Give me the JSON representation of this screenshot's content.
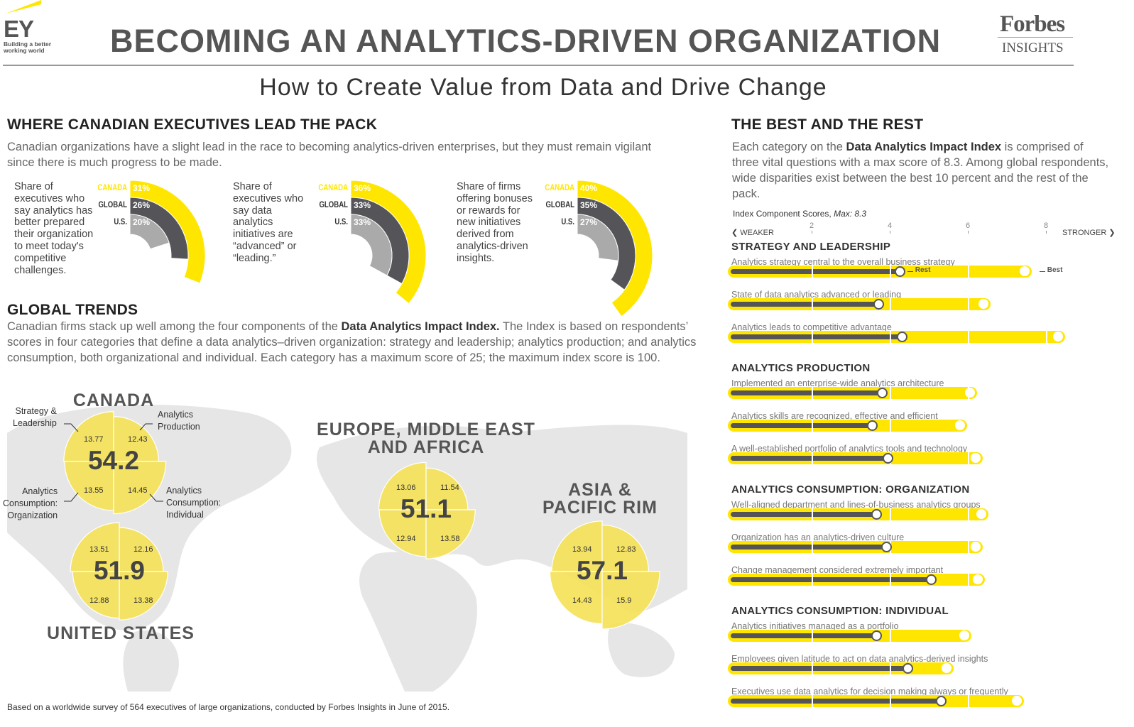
{
  "header": {
    "title": "BECOMING AN ANALYTICS-DRIVEN ORGANIZATION",
    "subtitle": "How to Create Value from Data and Drive Change",
    "ey_logo": "EY",
    "ey_tagline1": "Building a better",
    "ey_tagline2": "working world",
    "forbes_logo": "Forbes",
    "forbes_sub": "INSIGHTS"
  },
  "colors": {
    "yellow": "#FFE600",
    "dark": "#555559",
    "light": "#AAAAAA",
    "map": "#E6E6E6"
  },
  "lead": {
    "title": "WHERE CANADIAN EXECUTIVES LEAD THE PACK",
    "text": "Canadian organizations have a slight lead in the race to becoming analytics-driven enterprises, but they must remain vigilant since there is much progress to be made."
  },
  "chart_data": [
    {
      "type": "radial-bar",
      "description": "Share of executives who say analytics has better prepared their organization to meet today's competitive challenges.",
      "categories": [
        "CANADA",
        "GLOBAL",
        "U.S."
      ],
      "values": [
        31,
        26,
        20
      ],
      "labels": [
        "31%",
        "26%",
        "20%"
      ]
    },
    {
      "type": "radial-bar",
      "description": "Share of executives who say data analytics initiatives are “advanced” or “leading.”",
      "categories": [
        "CANADA",
        "GLOBAL",
        "U.S."
      ],
      "values": [
        36,
        33,
        33
      ],
      "labels": [
        "36%",
        "33%",
        "33%"
      ]
    },
    {
      "type": "radial-bar",
      "description": "Share of firms offering bonuses or rewards for new initiatives derived from analytics-driven insights.",
      "categories": [
        "CANADA",
        "GLOBAL",
        "U.S."
      ],
      "values": [
        40,
        35,
        27
      ],
      "labels": [
        "40%",
        "35%",
        "27%"
      ]
    },
    {
      "type": "polar-area",
      "title": "GLOBAL TRENDS",
      "regions": [
        {
          "name": "CANADA",
          "total": "54.2",
          "values": [
            13.77,
            12.43,
            13.55,
            14.45
          ]
        },
        {
          "name": "UNITED STATES",
          "total": "51.9",
          "values": [
            13.51,
            12.16,
            12.88,
            13.38
          ]
        },
        {
          "name": "EUROPE, MIDDLE EAST AND AFRICA",
          "total": "51.1",
          "values": [
            13.06,
            11.54,
            12.94,
            13.58
          ]
        },
        {
          "name": "ASIA & PACIFIC RIM",
          "total": "57.1",
          "values": [
            13.94,
            12.83,
            14.43,
            15.9
          ]
        }
      ],
      "categories": [
        "Strategy & Leadership",
        "Analytics Production",
        "Analytics Consumption: Organization",
        "Analytics Consumption: Individual"
      ]
    },
    {
      "type": "dot-bar",
      "title": "THE BEST AND THE REST",
      "subtitle": "Index Component Scores, Max: 8.3",
      "xticks": [
        2,
        4,
        6,
        8
      ],
      "xlim": [
        0,
        8.3
      ],
      "left_label": "WEAKER",
      "right_label": "STRONGER",
      "series_names": [
        "Rest",
        "Best"
      ],
      "sections": [
        {
          "name": "STRATEGY AND LEADERSHIP",
          "rows": [
            {
              "label": "Analytics strategy central to the overall business strategy",
              "rest": 4.25,
              "best": 7.45
            },
            {
              "label": "State of data analytics advanced or leading",
              "rest": 3.7,
              "best": 6.4
            },
            {
              "label": "Analytics leads to competitive advantage",
              "rest": 4.3,
              "best": 8.3
            }
          ]
        },
        {
          "name": "ANALYTICS PRODUCTION",
          "rows": [
            {
              "label": "Implemented an enterprise-wide analytics architecture",
              "rest": 3.8,
              "best": 6.05
            },
            {
              "label": "Analytics skills are recognized, effective and efficient",
              "rest": 3.55,
              "best": 5.8
            },
            {
              "label": "A well-established portfolio of analytics tools and technology",
              "rest": 3.95,
              "best": 6.2
            }
          ]
        },
        {
          "name": "ANALYTICS CONSUMPTION: ORGANIZATION",
          "rows": [
            {
              "label": "Well-aligned department and lines-of-business analytics groups",
              "rest": 3.65,
              "best": 6.35
            },
            {
              "label": "Organization has an analytics-driven culture",
              "rest": 3.9,
              "best": 6.2
            },
            {
              "label": "Change management considered extremely important",
              "rest": 5.05,
              "best": 6.25
            }
          ]
        },
        {
          "name": "ANALYTICS CONSUMPTION: INDIVIDUAL",
          "rows": [
            {
              "label": "Analytics initiatives managed as a portfolio",
              "rest": 3.65,
              "best": 5.9
            },
            {
              "label": "Employees given latitude to act on data analytics-derived insights",
              "rest": 4.45,
              "best": 5.45
            },
            {
              "label": "Executives use data analytics for decision making always or frequently",
              "rest": 5.3,
              "best": 7.25
            }
          ]
        }
      ]
    }
  ],
  "trends": {
    "title": "GLOBAL TRENDS",
    "text_a": "Canadian firms stack up well among the four components of the ",
    "text_bold": "Data Analytics Impact Index.",
    "text_b": " The Index is based on respondents’ scores in four categories that define a data analytics–driven organization: strategy and leadership; analytics production; and analytics consumption, both organizational and individual. Each category has a maximum score of 25; the maximum index score is 100."
  },
  "best": {
    "title": "THE BEST AND THE REST",
    "text_a": "Each category on the ",
    "text_bold": "Data Analytics Impact Index",
    "text_b": " is comprised of three vital questions with a max score of 8.3. Among global respondents, wide disparities exist between the best 10 percent and the rest of the pack.",
    "scale_label": "Index Component Scores, ",
    "scale_max": "Max: 8.3"
  },
  "callouts": {
    "strategy": "Strategy &\nLeadership",
    "production": "Analytics\nProduction",
    "org": "Analytics\nConsumption:\nOrganization",
    "ind": "Analytics\nConsumption:\nIndividual"
  },
  "footer": "Based on a worldwide survey of 564 executives of large organizations, conducted by Forbes Insights in June of 2015."
}
